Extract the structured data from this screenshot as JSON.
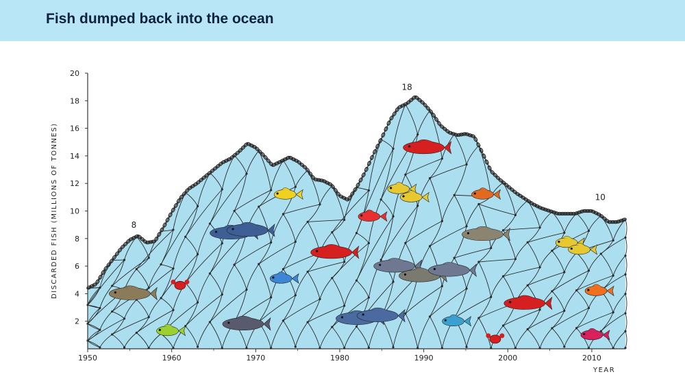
{
  "header": {
    "title": "Fish dumped back into the ocean"
  },
  "colors": {
    "header_bg": "#b8e6f7",
    "ocean_fill": "#abdff0",
    "net_line": "#2a2a2a",
    "title_text": "#0c2340"
  },
  "chart_data": {
    "type": "area",
    "title": "Fish dumped back into the ocean",
    "xlabel": "YEAR",
    "ylabel": "DISCARDED FISH (MILLIONS OF TONNES)",
    "xlim": [
      1950,
      2014
    ],
    "ylim": [
      0,
      20
    ],
    "x_ticks": [
      "1950",
      "1960",
      "1970",
      "1980",
      "1990",
      "2000",
      "2010"
    ],
    "y_ticks": [
      "2",
      "4",
      "6",
      "8",
      "10",
      "12",
      "14",
      "16",
      "18",
      "20"
    ],
    "grid": false,
    "legend": "none",
    "decoration": "fishing-net area with illustrated fish",
    "series": [
      {
        "x": [
          1950,
          1951,
          1952,
          1953,
          1954,
          1955,
          1956,
          1957,
          1958,
          1959,
          1960,
          1961,
          1962,
          1963,
          1964,
          1965,
          1966,
          1967,
          1968,
          1969,
          1970,
          1971,
          1972,
          1973,
          1974,
          1975,
          1976,
          1977,
          1978,
          1979,
          1980,
          1981,
          1982,
          1983,
          1984,
          1985,
          1986,
          1987,
          1988,
          1989,
          1990,
          1991,
          1992,
          1993,
          1994,
          1995,
          1996,
          1997,
          1998,
          1999,
          2000,
          2001,
          2002,
          2003,
          2004,
          2005,
          2006,
          2007,
          2008,
          2009,
          2010,
          2011,
          2012,
          2013,
          2014
        ],
        "values": [
          4.4,
          4.7,
          5.7,
          6.5,
          7.3,
          7.9,
          8.2,
          7.7,
          7.8,
          8.8,
          9.9,
          10.9,
          11.6,
          12.0,
          12.5,
          13.0,
          13.5,
          13.8,
          14.3,
          14.9,
          14.6,
          14.0,
          13.3,
          13.6,
          13.9,
          13.6,
          13.1,
          12.3,
          12.2,
          11.9,
          11.1,
          10.8,
          11.7,
          12.8,
          14.1,
          15.3,
          16.6,
          17.5,
          17.8,
          18.3,
          17.8,
          17.1,
          16.2,
          15.7,
          15.5,
          15.6,
          15.4,
          14.2,
          12.9,
          12.3,
          11.8,
          11.3,
          10.9,
          10.5,
          10.2,
          10.0,
          9.8,
          9.8,
          9.8,
          10.0,
          10.0,
          9.7,
          9.2,
          9.2,
          9.4
        ]
      }
    ],
    "annotations": [
      {
        "x": 1955.5,
        "y": 8,
        "text": "8"
      },
      {
        "x": 1988,
        "y": 18,
        "text": "18"
      },
      {
        "x": 2011,
        "y": 10,
        "text": "10"
      }
    ],
    "fish": [
      {
        "x": 1955,
        "y": 4.0,
        "color": "#8b7b5a",
        "name": "grouper"
      },
      {
        "x": 1961,
        "y": 4.6,
        "color": "#d62020",
        "name": "crab"
      },
      {
        "x": 1959.5,
        "y": 1.3,
        "color": "#9cd030",
        "name": "wrasse"
      },
      {
        "x": 1967,
        "y": 8.4,
        "color": "#3d5f96",
        "name": "mackerel"
      },
      {
        "x": 1969,
        "y": 8.6,
        "color": "#3d5f96",
        "name": "mackerel"
      },
      {
        "x": 1973.5,
        "y": 11.2,
        "color": "#f0d020",
        "name": "butterflyfish"
      },
      {
        "x": 1973,
        "y": 5.1,
        "color": "#3d86d6",
        "name": "tang"
      },
      {
        "x": 1968.5,
        "y": 1.8,
        "color": "#5a5a6e",
        "name": "shark"
      },
      {
        "x": 1979,
        "y": 7.0,
        "color": "#d62020",
        "name": "snapper"
      },
      {
        "x": 1983.5,
        "y": 9.6,
        "color": "#e83030",
        "name": "parrotfish"
      },
      {
        "x": 1982,
        "y": 2.2,
        "color": "#4a6aa0",
        "name": "mackerel"
      },
      {
        "x": 1984.5,
        "y": 2.4,
        "color": "#4a6aa0",
        "name": "mackerel"
      },
      {
        "x": 1986.5,
        "y": 6.0,
        "color": "#6e7890",
        "name": "bass"
      },
      {
        "x": 1989.5,
        "y": 5.3,
        "color": "#7a7a70",
        "name": "grouper"
      },
      {
        "x": 1993,
        "y": 5.7,
        "color": "#6e7890",
        "name": "bass"
      },
      {
        "x": 1987,
        "y": 11.6,
        "color": "#e6c830",
        "name": "angelfish"
      },
      {
        "x": 1988.5,
        "y": 11.0,
        "color": "#e6c830",
        "name": "angelfish"
      },
      {
        "x": 1990,
        "y": 14.6,
        "color": "#d62020",
        "name": "snapper"
      },
      {
        "x": 1997,
        "y": 11.2,
        "color": "#e06a20",
        "name": "goldfish"
      },
      {
        "x": 1997,
        "y": 8.3,
        "color": "#8a8470",
        "name": "grouper"
      },
      {
        "x": 2002,
        "y": 3.3,
        "color": "#d62020",
        "name": "snapper"
      },
      {
        "x": 1993.5,
        "y": 2.0,
        "color": "#3aa0d0",
        "name": "reef-fish"
      },
      {
        "x": 1998.5,
        "y": 0.7,
        "color": "#d62020",
        "name": "crab"
      },
      {
        "x": 2007,
        "y": 7.7,
        "color": "#e6c830",
        "name": "angelfish"
      },
      {
        "x": 2008.5,
        "y": 7.2,
        "color": "#e6c830",
        "name": "angelfish"
      },
      {
        "x": 2010.5,
        "y": 4.2,
        "color": "#f07020",
        "name": "clownfish"
      },
      {
        "x": 2010,
        "y": 1.0,
        "color": "#d8205a",
        "name": "mandarinfish"
      }
    ]
  }
}
